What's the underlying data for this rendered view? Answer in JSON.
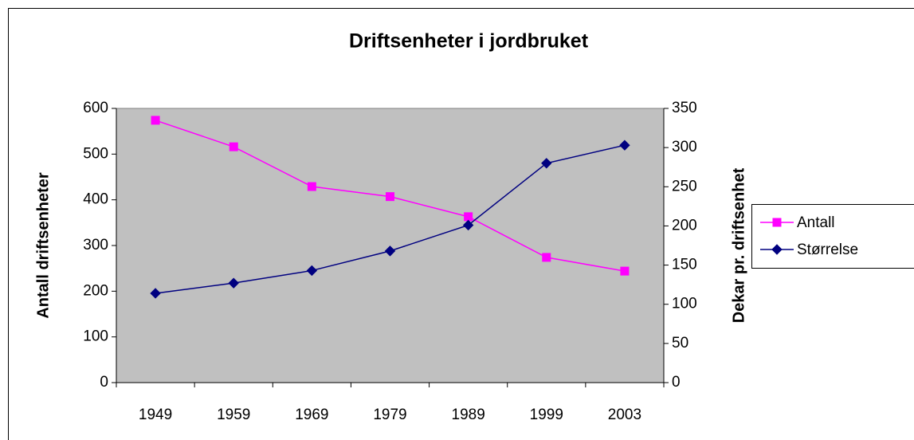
{
  "chart_data": {
    "type": "line",
    "title": "Driftsenheter i jordbruket",
    "categories": [
      "1949",
      "1959",
      "1969",
      "1979",
      "1989",
      "1999",
      "2003"
    ],
    "ylabel": "Antall driftsenheter",
    "y2label": "Dekar pr. driftsenhet",
    "ylim": [
      0,
      600
    ],
    "yticks": [
      0,
      100,
      200,
      300,
      400,
      500,
      600
    ],
    "y2lim": [
      0,
      350
    ],
    "y2ticks": [
      0,
      50,
      100,
      150,
      200,
      250,
      300,
      350
    ],
    "legend": "right",
    "plot_background": "#c0c0c0",
    "series": [
      {
        "name": "Antall",
        "color": "#ff00ff",
        "marker": "square",
        "values": [
          574,
          516,
          429,
          407,
          363,
          274,
          244
        ]
      },
      {
        "name": "Størrelse",
        "color": "#000080",
        "marker": "diamond",
        "axis": "y2",
        "values": [
          114,
          127,
          143,
          168,
          201,
          280,
          303
        ]
      }
    ]
  }
}
